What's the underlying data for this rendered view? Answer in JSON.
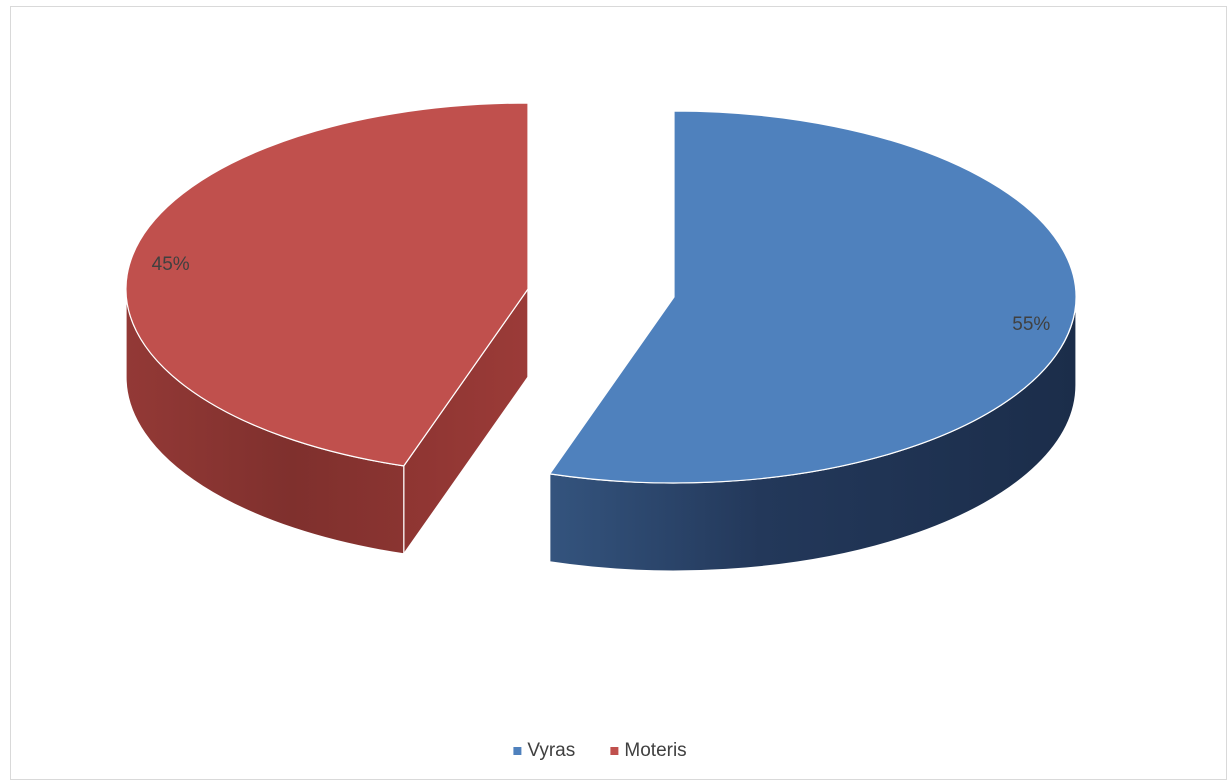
{
  "chart_data": {
    "type": "pie",
    "style": "3d-exploded",
    "title": "",
    "categories": [
      "Vyras",
      "Moteris"
    ],
    "values": [
      55,
      45
    ],
    "labels": [
      "55%",
      "45%"
    ],
    "colors": [
      "#4f81bd",
      "#c0504d"
    ],
    "legend_position": "bottom"
  }
}
